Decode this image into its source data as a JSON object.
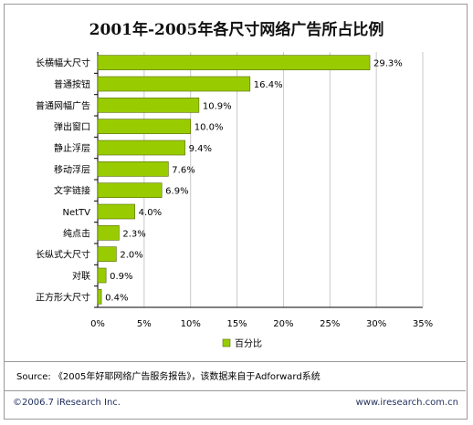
{
  "chart_data": {
    "type": "bar",
    "orientation": "horizontal",
    "title": "2001年-2005年各尺寸网络广告所占比例",
    "categories": [
      "长横幅大尺寸",
      "普通按钮",
      "普通网幅广告",
      "弹出窗口",
      "静止浮层",
      "移动浮层",
      "文字链接",
      "NetTV",
      "纯点击",
      "长纵式大尺寸",
      "对联",
      "正方形大尺寸"
    ],
    "series": [
      {
        "name": "百分比",
        "values": [
          29.3,
          16.4,
          10.9,
          10.0,
          9.4,
          7.6,
          6.9,
          4.0,
          2.3,
          2.0,
          0.9,
          0.4
        ],
        "labels": [
          "29.3%",
          "16.4%",
          "10.9%",
          "10.0%",
          "9.4%",
          "7.6%",
          "6.9%",
          "4.0%",
          "2.3%",
          "2.0%",
          "0.9%",
          "0.4%"
        ]
      }
    ],
    "xlim": [
      0,
      35
    ],
    "xticks": [
      0,
      5,
      10,
      15,
      20,
      25,
      30,
      35
    ],
    "xtick_labels": [
      "0%",
      "5%",
      "10%",
      "15%",
      "20%",
      "25%",
      "30%",
      "35%"
    ],
    "grid": true,
    "legend": "bottom",
    "colors": {
      "bar": "#99cc00",
      "bar_stroke": "#556b00",
      "grid": "#c8c8c8",
      "axis": "#000000"
    }
  },
  "source": "Source: 《2005年好耶网络广告服务报告》，该数据来自于Adforward系统",
  "footer": {
    "copyright": "©2006.7 iResearch Inc.",
    "url": "www.iresearch.com.cn"
  }
}
